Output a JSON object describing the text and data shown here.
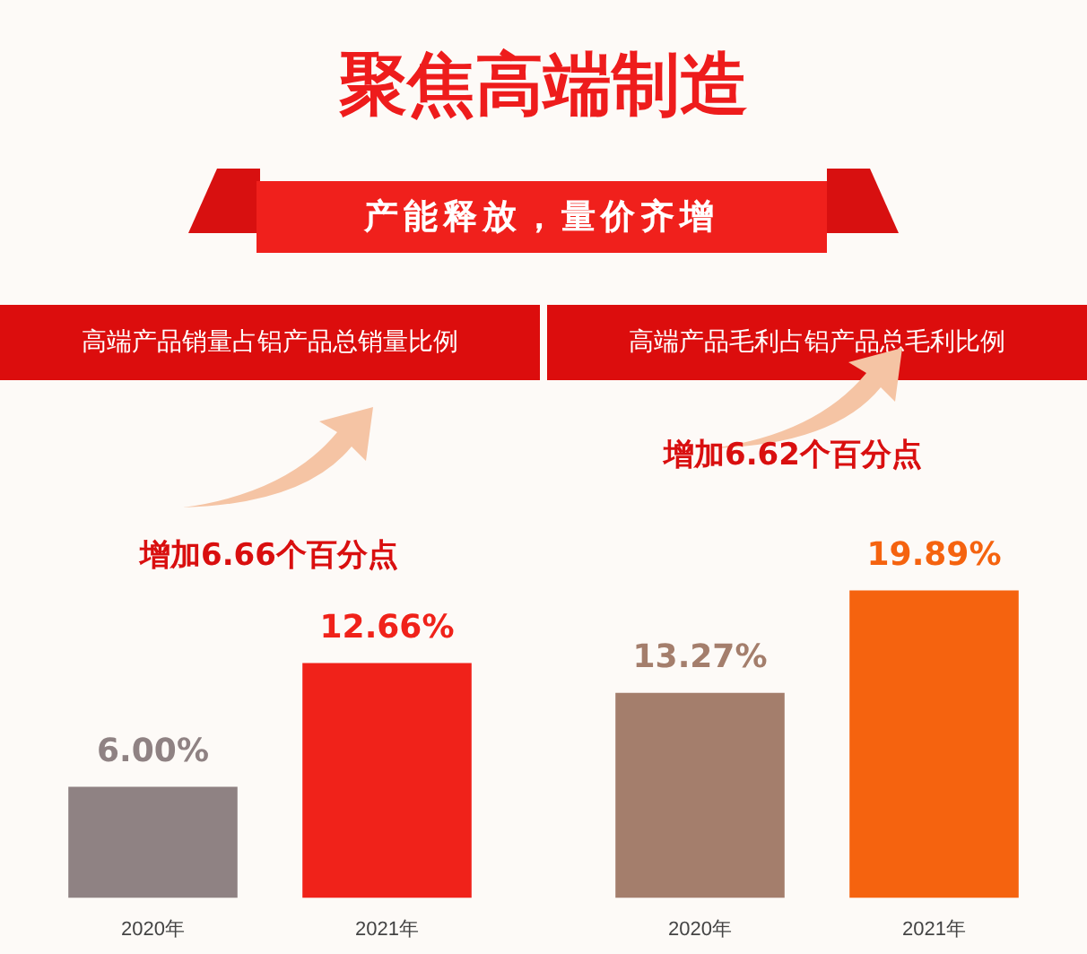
{
  "chart_data": [
    {
      "type": "other",
      "title": "聚焦高端制造",
      "subtitle": "产能释放，量价齐增"
    },
    {
      "type": "bar",
      "title": "高端产品销量占铝产品总销量比例",
      "categories": [
        "2020年",
        "2021年"
      ],
      "values": [
        6.0,
        12.66
      ],
      "colors": [
        "#8f8283",
        "#f0221a"
      ],
      "value_labels": [
        "6.00%",
        "12.66%"
      ],
      "annotations": [
        "增加6.66个百分点"
      ]
    },
    {
      "type": "bar",
      "title": "高端产品毛利占铝产品总毛利比例",
      "categories": [
        "2020年",
        "2021年"
      ],
      "values": [
        13.27,
        19.89
      ],
      "colors": [
        "#a47e6c",
        "#f5630f"
      ],
      "value_labels": [
        "13.27%",
        "19.89%"
      ],
      "annotations": [
        "增加6.62个百分点"
      ]
    }
  ]
}
